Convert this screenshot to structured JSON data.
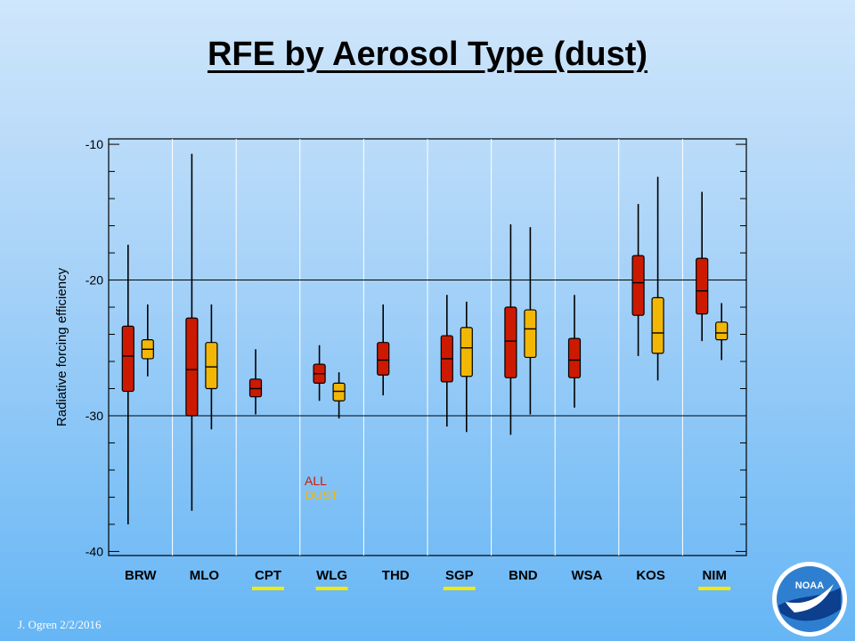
{
  "slide": {
    "title": "RFE by Aerosol Type (dust)",
    "footer": "J. Ogren  2/2/2016"
  },
  "logo": {
    "text": "NOAA"
  },
  "colors": {
    "all": "#cc1a00",
    "dust": "#f2b705",
    "highlight": "#f5ea00"
  },
  "chart_data": {
    "type": "boxplot",
    "title": "",
    "xlabel": "",
    "ylabel": "Radiative forcing efficiency",
    "ylim": [
      -40,
      -10
    ],
    "yticks": [
      -10,
      -20,
      -30,
      -40
    ],
    "grid": true,
    "legend": {
      "placement": "inside-lower-left",
      "entries": [
        "ALL",
        "DUST"
      ]
    },
    "categories": [
      "BRW",
      "MLO",
      "CPT",
      "WLG",
      "THD",
      "SGP",
      "BND",
      "WSA",
      "KOS",
      "NIM"
    ],
    "highlighted_categories": [
      "CPT",
      "WLG",
      "SGP",
      "NIM"
    ],
    "series": [
      {
        "name": "ALL",
        "boxes": [
          {
            "min": -38.0,
            "q1": -28.2,
            "median": -25.6,
            "q3": -23.4,
            "max": -17.4
          },
          {
            "min": -37.0,
            "q1": -30.0,
            "median": -26.6,
            "q3": -22.8,
            "max": -10.7
          },
          {
            "min": -29.9,
            "q1": -28.6,
            "median": -28.0,
            "q3": -27.3,
            "max": -25.1
          },
          {
            "min": -28.9,
            "q1": -27.6,
            "median": -26.9,
            "q3": -26.2,
            "max": -24.8
          },
          {
            "min": -28.5,
            "q1": -27.0,
            "median": -25.9,
            "q3": -24.6,
            "max": -21.8
          },
          {
            "min": -30.8,
            "q1": -27.5,
            "median": -25.8,
            "q3": -24.1,
            "max": -21.1
          },
          {
            "min": -31.4,
            "q1": -27.2,
            "median": -24.5,
            "q3": -22.0,
            "max": -15.9
          },
          {
            "min": -29.4,
            "q1": -27.2,
            "median": -25.9,
            "q3": -24.3,
            "max": -21.1
          },
          {
            "min": -25.6,
            "q1": -22.6,
            "median": -20.2,
            "q3": -18.2,
            "max": -14.4
          },
          {
            "min": -24.5,
            "q1": -22.5,
            "median": -20.8,
            "q3": -18.4,
            "max": -13.5
          }
        ]
      },
      {
        "name": "DUST",
        "boxes": [
          {
            "min": -27.1,
            "q1": -25.8,
            "median": -25.1,
            "q3": -24.4,
            "max": -21.8
          },
          {
            "min": -31.0,
            "q1": -28.0,
            "median": -26.4,
            "q3": -24.6,
            "max": -21.8
          },
          null,
          {
            "min": -30.2,
            "q1": -28.9,
            "median": -28.2,
            "q3": -27.6,
            "max": -26.8
          },
          null,
          {
            "min": -31.2,
            "q1": -27.1,
            "median": -25.0,
            "q3": -23.5,
            "max": -21.6
          },
          {
            "min": -29.9,
            "q1": -25.7,
            "median": -23.6,
            "q3": -22.2,
            "max": -16.1
          },
          null,
          {
            "min": -27.4,
            "q1": -25.4,
            "median": -23.9,
            "q3": -21.3,
            "max": -12.4
          },
          {
            "min": -25.9,
            "q1": -24.4,
            "median": -23.9,
            "q3": -23.1,
            "max": -21.7
          }
        ]
      }
    ]
  }
}
